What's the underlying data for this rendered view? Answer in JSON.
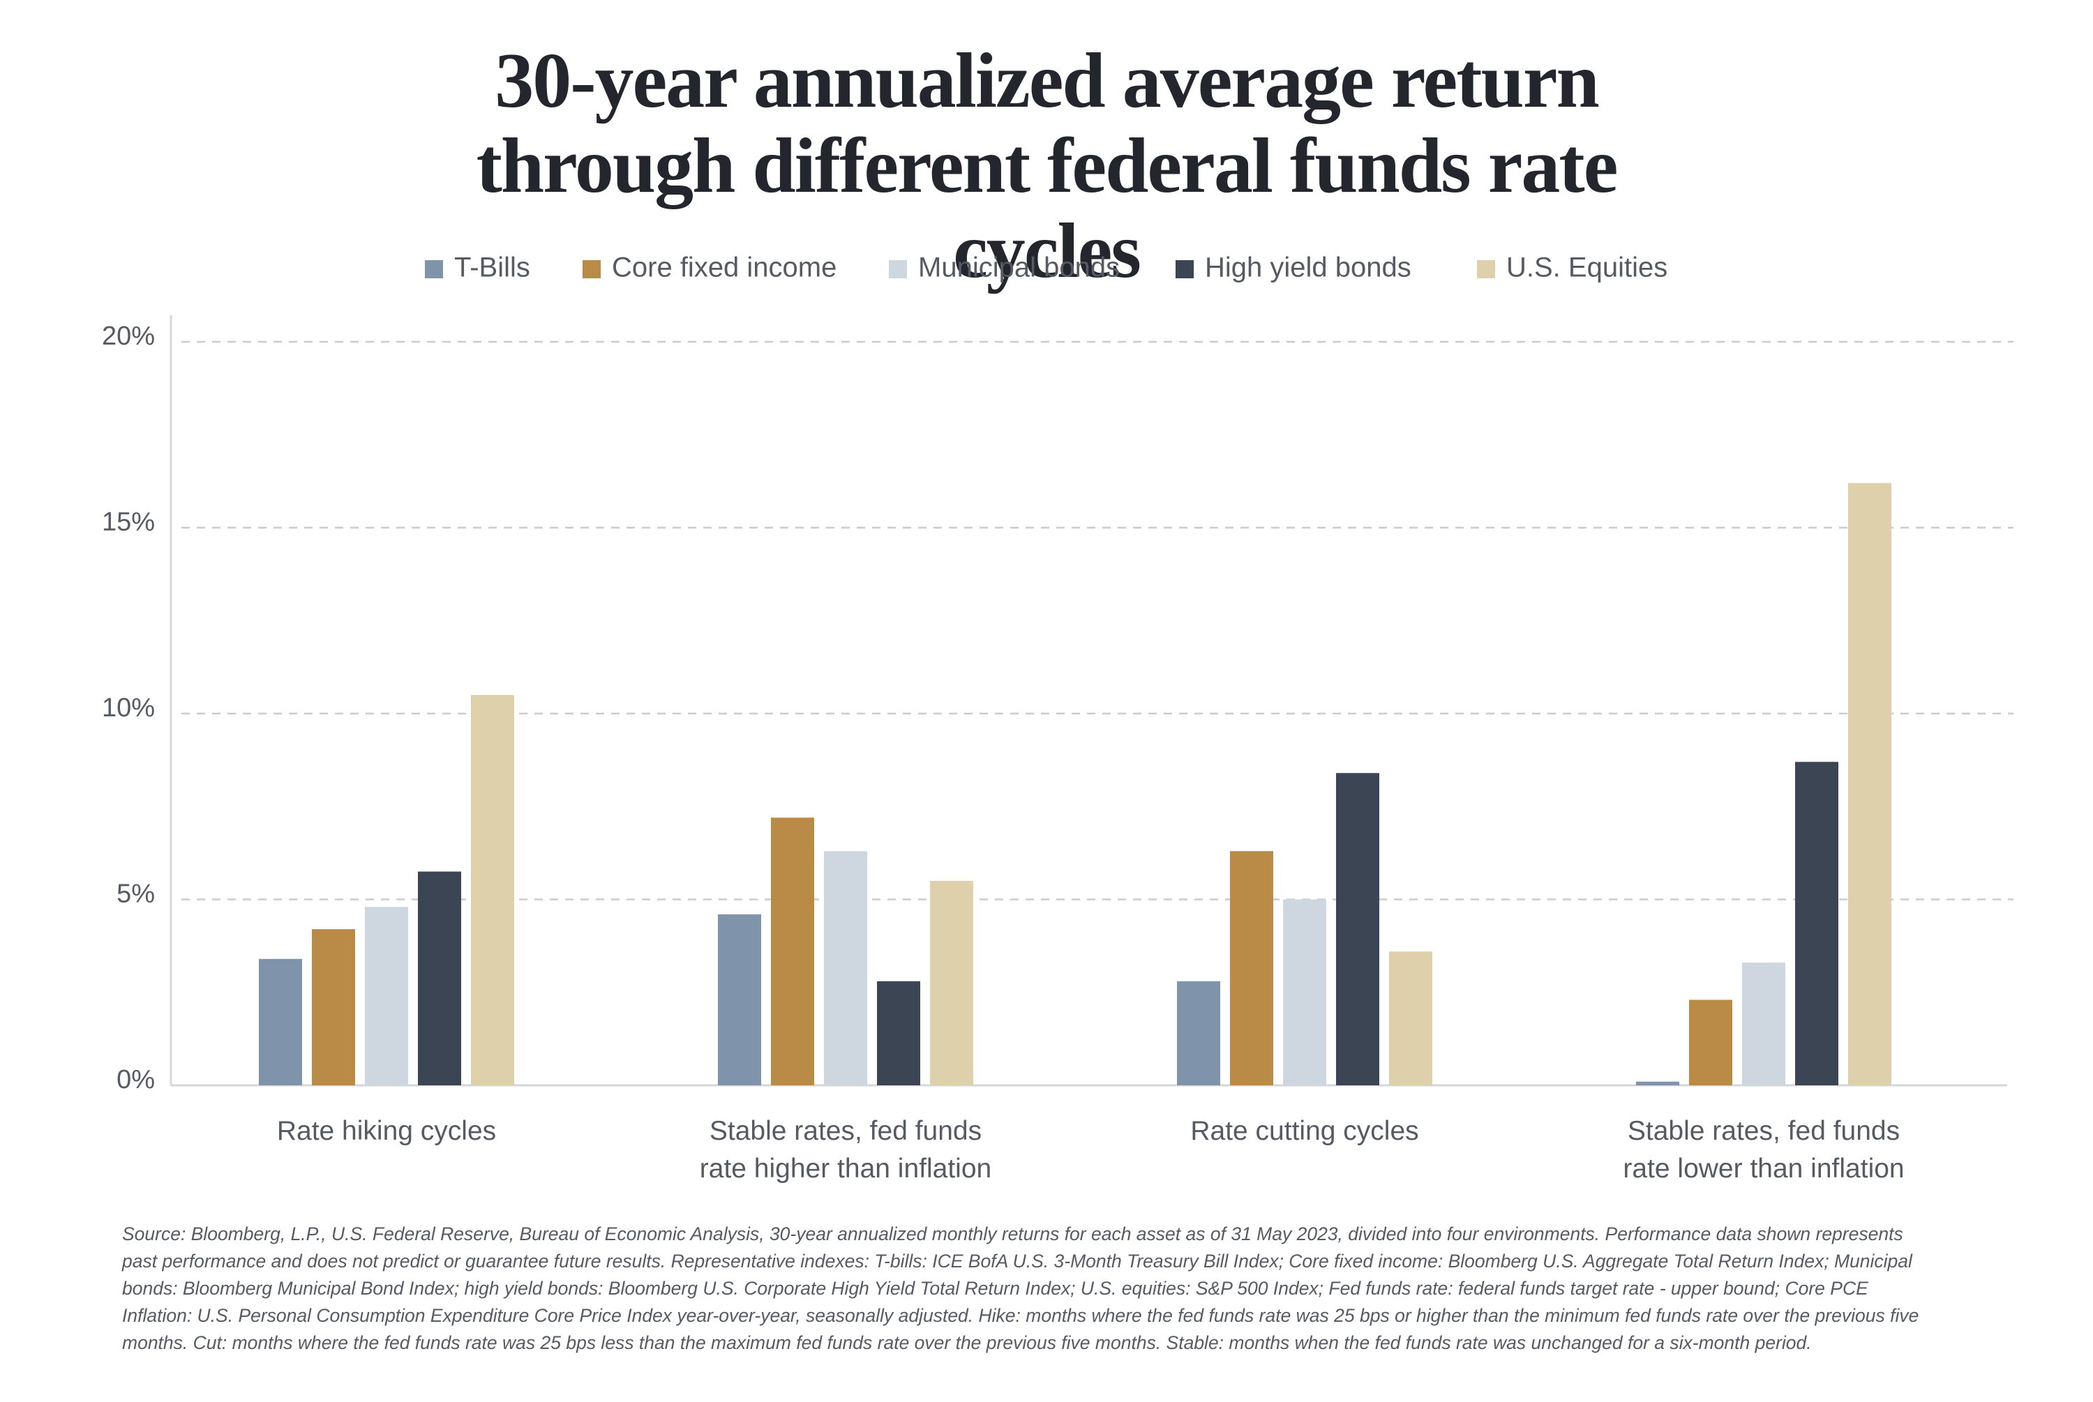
{
  "chart_data": {
    "type": "bar",
    "title": "30-year annualized average return through different federal funds rate cycles",
    "categories": [
      "Rate hiking cycles",
      "Stable rates, fed funds\nrate higher than inflation",
      "Rate cutting cycles",
      "Stable rates, fed funds\nrate lower than inflation"
    ],
    "series": [
      {
        "name": "T-Bills",
        "color": "#7f93aa",
        "values": [
          3.4,
          4.6,
          2.8,
          0.1
        ]
      },
      {
        "name": "Core fixed income",
        "color": "#b98b47",
        "values": [
          4.2,
          7.2,
          6.3,
          2.3
        ]
      },
      {
        "name": "Municipal bonds",
        "color": "#ced7e0",
        "values": [
          4.8,
          6.3,
          5.0,
          3.3
        ]
      },
      {
        "name": "High yield bonds",
        "color": "#3c4554",
        "values": [
          5.75,
          2.8,
          8.4,
          8.7
        ]
      },
      {
        "name": "U.S. Equities",
        "color": "#dfd0ac",
        "values": [
          10.5,
          5.5,
          3.6,
          16.2
        ]
      }
    ],
    "ylim": [
      0,
      20
    ],
    "yticks": [
      {
        "value": 0,
        "label": "0%"
      },
      {
        "value": 5,
        "label": "5%"
      },
      {
        "value": 10,
        "label": "10%"
      },
      {
        "value": 15,
        "label": "15%"
      },
      {
        "value": 20,
        "label": "20%"
      }
    ],
    "grid": true,
    "legend": "top",
    "note": "Source: Bloomberg, L.P., U.S. Federal Reserve, Bureau of Economic Analysis, 30-year annualized monthly returns for each asset as of 31 May 2023, divided into four environments. Performance data shown represents past performance and does not predict or guarantee future results. Representative indexes: T-bills: ICE BofA U.S. 3-Month Treasury Bill Index; Core fixed income: Bloomberg U.S. Aggregate Total Return Index; Municipal bonds: Bloomberg Municipal Bond Index; high yield bonds: Bloomberg U.S. Corporate High Yield Total Return Index; U.S. equities: S&P 500 Index; Fed funds rate: federal funds target rate - upper bound; Core PCE Inflation: U.S. Personal Consumption Expenditure Core Price Index year-over-year, seasonally adjusted. Hike: months where the fed funds rate was 25 bps or higher than the minimum fed funds rate over the previous five months. Cut: months where the fed funds rate was 25 bps less than the maximum fed funds rate over the previous five months. Stable: months when the fed funds rate was unchanged for a six-month period."
  }
}
